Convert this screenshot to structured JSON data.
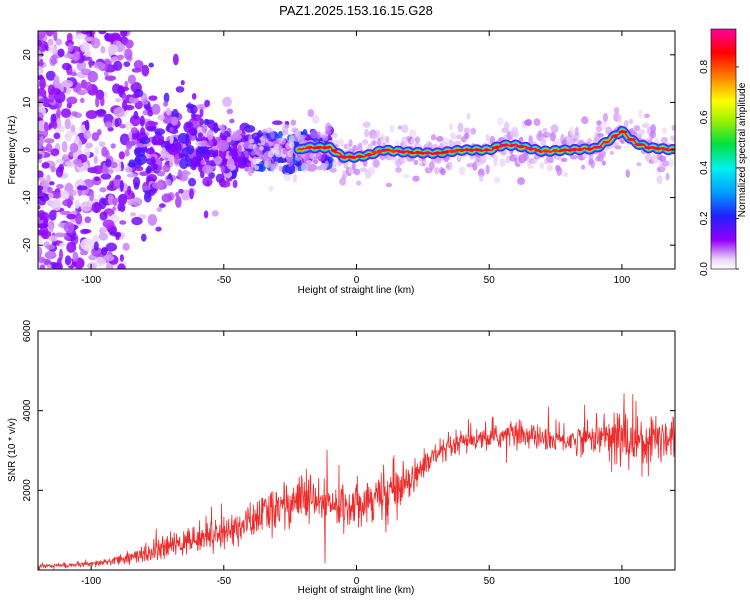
{
  "title": "PAZ1.2025.153.16.15.G28",
  "colors": {
    "snr_line": "#ee2a2a",
    "spectrogram_low": "#d9c2ee",
    "spectrogram_mid": "#7f00ff",
    "track_core": "#ff1a1a"
  },
  "colorbar": {
    "label": "Normalized spectral amplitude",
    "ticks": [
      "0.0",
      "0.2",
      "0.4",
      "0.6",
      "0.8"
    ],
    "tick_values": [
      0.0,
      0.2,
      0.4,
      0.6,
      0.8
    ],
    "range": [
      0.0,
      0.95
    ],
    "colormap": "rainbow (white to purple to blue to cyan to green to yellow to red to magenta)"
  },
  "chart_data": [
    {
      "type": "heatmap",
      "title": "PAZ1.2025.153.16.15.G28",
      "xlabel": "Height of straight line (km)",
      "ylabel": "Frequency (Hz)",
      "xlim": [
        -120,
        120
      ],
      "ylim": [
        -25,
        25
      ],
      "xticks": [
        -100,
        -50,
        0,
        50,
        100
      ],
      "xtick_labels": [
        "-100",
        "-50",
        "0",
        "50",
        "100"
      ],
      "yticks": [
        -20,
        -10,
        0,
        10,
        20
      ],
      "ytick_labels": [
        "-20",
        "-10",
        "0",
        "10",
        "20"
      ],
      "grid": false,
      "ridge": {
        "name": "dominant frequency track",
        "x": [
          -20,
          -10,
          -5,
          0,
          5,
          10,
          20,
          30,
          40,
          50,
          55,
          60,
          70,
          80,
          90,
          95,
          100,
          105,
          110,
          120
        ],
        "y": [
          0.5,
          0.5,
          -1.5,
          -1.5,
          -1.0,
          0.0,
          -0.5,
          -0.7,
          0.0,
          0.0,
          1.0,
          1.0,
          -0.3,
          0.0,
          0.3,
          2.0,
          4.0,
          1.5,
          0.5,
          0.0
        ],
        "amplitude": 0.9
      }
    },
    {
      "type": "line",
      "xlabel": "Height of straight line (km)",
      "ylabel": "SNR (10 * v/v)",
      "xlim": [
        -120,
        120
      ],
      "ylim": [
        0,
        6000
      ],
      "xticks": [
        -100,
        -50,
        0,
        50,
        100
      ],
      "xtick_labels": [
        "-100",
        "-50",
        "0",
        "50",
        "100"
      ],
      "yticks": [
        2000,
        4000,
        6000
      ],
      "ytick_labels": [
        "2000",
        "4000",
        "6000"
      ],
      "grid": false,
      "series": [
        {
          "x": [
            -120,
            -110,
            -100,
            -90,
            -80,
            -70,
            -60,
            -50,
            -40,
            -30,
            -20,
            -10,
            0,
            10,
            20,
            30,
            40,
            50,
            60,
            70,
            80,
            90,
            100,
            110,
            120
          ],
          "y": [
            100,
            120,
            140,
            250,
            400,
            600,
            800,
            950,
            1200,
            1600,
            1800,
            1600,
            1700,
            1900,
            2300,
            2900,
            3200,
            3300,
            3450,
            3300,
            3250,
            3350,
            3300,
            3300,
            3400
          ],
          "spread": [
            60,
            60,
            70,
            120,
            250,
            300,
            350,
            400,
            450,
            600,
            650,
            600,
            550,
            600,
            450,
            300,
            300,
            280,
            350,
            300,
            350,
            400,
            900,
            700,
            650
          ]
        }
      ]
    }
  ]
}
